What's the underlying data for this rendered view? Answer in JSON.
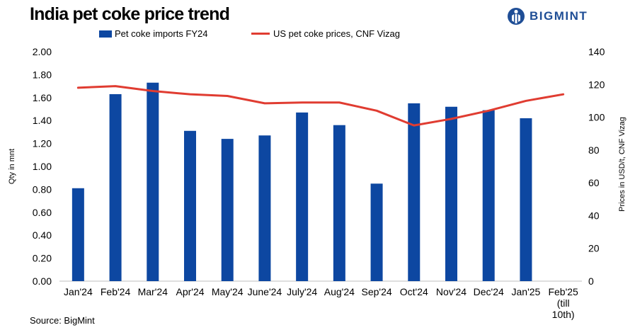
{
  "title": "India pet coke price trend",
  "logo": {
    "text": "BIGMINT",
    "icon": "bigmint-logo-icon",
    "color": "#1f4e96"
  },
  "source": "Source: BigMint",
  "chart_data": {
    "type": "bar",
    "title": "India pet coke price trend",
    "categories": [
      "Jan'24",
      "Feb'24",
      "Mar'24",
      "Apr'24",
      "May'24",
      "June'24",
      "July'24",
      "Aug'24",
      "Sep'24",
      "Oct'24",
      "Nov'24",
      "Dec'24",
      "Jan'25",
      "Feb'25"
    ],
    "category_lines": [
      [
        "Jan'24"
      ],
      [
        "Feb'24"
      ],
      [
        "Mar'24"
      ],
      [
        "Apr'24"
      ],
      [
        "May'24"
      ],
      [
        "June'24"
      ],
      [
        "July'24"
      ],
      [
        "Aug'24"
      ],
      [
        "Sep'24"
      ],
      [
        "Oct'24"
      ],
      [
        "Nov'24"
      ],
      [
        "Dec'24"
      ],
      [
        "Jan'25"
      ],
      [
        "Feb'25",
        "(till",
        "10th)"
      ]
    ],
    "series": [
      {
        "name": "Pet coke imports FY24",
        "type": "bar",
        "axis": "left",
        "color": "#0d47a1",
        "values": [
          0.81,
          1.63,
          1.73,
          1.31,
          1.24,
          1.27,
          1.47,
          1.36,
          0.85,
          1.55,
          1.52,
          1.49,
          1.42,
          null
        ]
      },
      {
        "name": "US pet coke prices, CNF Vizag",
        "type": "line",
        "axis": "right",
        "color": "#e03c31",
        "values": [
          118,
          119,
          116,
          114,
          113,
          108.5,
          109,
          109,
          104,
          95,
          99,
          104,
          110,
          114
        ]
      }
    ],
    "y_left": {
      "label": "Qty in mnt",
      "min": 0,
      "max": 2.0,
      "step": 0.2,
      "ticks": [
        "0.00",
        "0.20",
        "0.40",
        "0.60",
        "0.80",
        "1.00",
        "1.20",
        "1.40",
        "1.60",
        "1.80",
        "2.00"
      ]
    },
    "y_right": {
      "label": "Prices in USD/t, CNF Vizag",
      "min": 0,
      "max": 140,
      "step": 20,
      "ticks": [
        "0",
        "20",
        "40",
        "60",
        "80",
        "100",
        "120",
        "140"
      ]
    },
    "grid": false,
    "legend": "top"
  }
}
